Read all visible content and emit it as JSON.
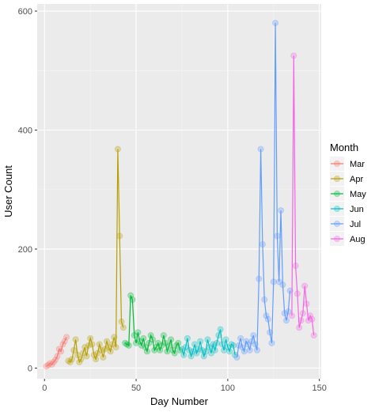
{
  "chart_data": {
    "type": "line",
    "xlabel": "Day Number",
    "ylabel": "User Count",
    "xlim": [
      -4,
      151
    ],
    "ylim": [
      -18,
      612
    ],
    "x_ticks": [
      0,
      50,
      100,
      150
    ],
    "y_ticks": [
      0,
      200,
      400,
      600
    ],
    "grid": true,
    "legend_title": "Month",
    "legend_position": "right",
    "series": [
      {
        "name": "Mar",
        "color": "#F8766D",
        "x": [
          1,
          2,
          3,
          4,
          5,
          6,
          7,
          8,
          9,
          10,
          11,
          12
        ],
        "y": [
          3,
          5,
          8,
          6,
          10,
          14,
          20,
          32,
          28,
          40,
          45,
          52
        ]
      },
      {
        "name": "Apr",
        "color": "#B79F00",
        "x": [
          13,
          14,
          15,
          16,
          17,
          18,
          19,
          20,
          21,
          22,
          23,
          24,
          25,
          26,
          27,
          28,
          29,
          30,
          31,
          32,
          33,
          34,
          35,
          36,
          37,
          38,
          39,
          40,
          41,
          42,
          43
        ],
        "y": [
          12,
          10,
          15,
          30,
          48,
          22,
          10,
          15,
          25,
          35,
          20,
          38,
          50,
          40,
          22,
          15,
          25,
          40,
          30,
          18,
          32,
          45,
          35,
          28,
          40,
          52,
          35,
          368,
          222,
          78,
          68
        ]
      },
      {
        "name": "May",
        "color": "#00BA38",
        "x": [
          44,
          45,
          46,
          47,
          48,
          49,
          50,
          51,
          52,
          53,
          54,
          55,
          56,
          57,
          58,
          59,
          60,
          61,
          62,
          63,
          64,
          65,
          66,
          67,
          68,
          69,
          70,
          71,
          72,
          73,
          74
        ],
        "y": [
          42,
          40,
          38,
          122,
          115,
          55,
          42,
          60,
          45,
          38,
          50,
          35,
          28,
          42,
          55,
          48,
          30,
          35,
          42,
          30,
          38,
          55,
          42,
          28,
          38,
          48,
          30,
          25,
          38,
          42,
          30
        ]
      },
      {
        "name": "Jun",
        "color": "#00BFC4",
        "x": [
          75,
          76,
          77,
          78,
          79,
          80,
          81,
          82,
          83,
          84,
          85,
          86,
          87,
          88,
          89,
          90,
          91,
          92,
          93,
          94,
          95,
          96,
          97,
          98,
          99,
          100,
          101,
          102,
          103,
          104
        ],
        "y": [
          32,
          22,
          35,
          50,
          30,
          20,
          28,
          40,
          25,
          32,
          45,
          30,
          20,
          28,
          48,
          35,
          25,
          40,
          30,
          42,
          55,
          65,
          40,
          30,
          48,
          35,
          28,
          40,
          38,
          22
        ]
      },
      {
        "name": "Jul",
        "color": "#619CFF",
        "x": [
          105,
          106,
          107,
          108,
          109,
          110,
          111,
          112,
          113,
          114,
          115,
          116,
          117,
          118,
          119,
          120,
          121,
          122,
          123,
          124,
          125,
          126,
          127,
          128,
          129,
          130,
          131,
          132,
          133,
          134
        ],
        "y": [
          18,
          38,
          50,
          35,
          28,
          45,
          40,
          30,
          45,
          55,
          40,
          30,
          150,
          368,
          208,
          115,
          88,
          82,
          60,
          42,
          145,
          580,
          222,
          145,
          265,
          140,
          92,
          80,
          95,
          130
        ]
      },
      {
        "name": "Aug",
        "color": "#F564E3",
        "x": [
          135,
          136,
          137,
          138,
          139,
          140,
          141,
          142,
          143,
          144,
          145,
          146,
          147
        ],
        "y": [
          88,
          525,
          172,
          125,
          68,
          80,
          92,
          138,
          108,
          80,
          88,
          82,
          55
        ]
      }
    ]
  }
}
